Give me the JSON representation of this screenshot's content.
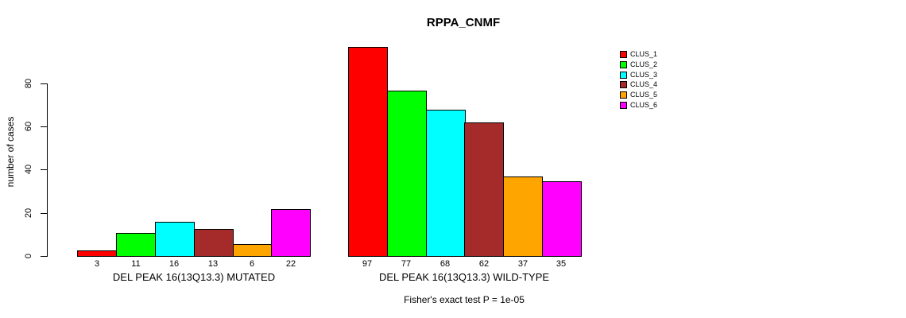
{
  "chart_data": {
    "type": "bar",
    "title": "RPPA_CNMF",
    "ylabel": "number of cases",
    "xlabel": "",
    "ylim": [
      0,
      80
    ],
    "yticks": [
      0,
      20,
      40,
      60,
      80
    ],
    "grid": false,
    "legend_position": "top-right",
    "bar_value_labels": true,
    "categories": [
      "DEL PEAK 16(13Q13.3) MUTATED",
      "DEL PEAK 16(13Q13.3) WILD-TYPE"
    ],
    "series": [
      {
        "name": "CLUS_1",
        "color": "#FF0000",
        "values": [
          3,
          97
        ]
      },
      {
        "name": "CLUS_2",
        "color": "#00FF00",
        "values": [
          11,
          77
        ]
      },
      {
        "name": "CLUS_3",
        "color": "#00FFFF",
        "values": [
          16,
          68
        ]
      },
      {
        "name": "CLUS_4",
        "color": "#A52A2A",
        "values": [
          13,
          62
        ]
      },
      {
        "name": "CLUS_5",
        "color": "#FFA500",
        "values": [
          6,
          37
        ]
      },
      {
        "name": "CLUS_6",
        "color": "#FF00FF",
        "values": [
          22,
          35
        ]
      }
    ],
    "annotation": "Fisher's exact test P = 1e-05",
    "axis_color": "#000000",
    "background_color": "#FFFFFF"
  }
}
